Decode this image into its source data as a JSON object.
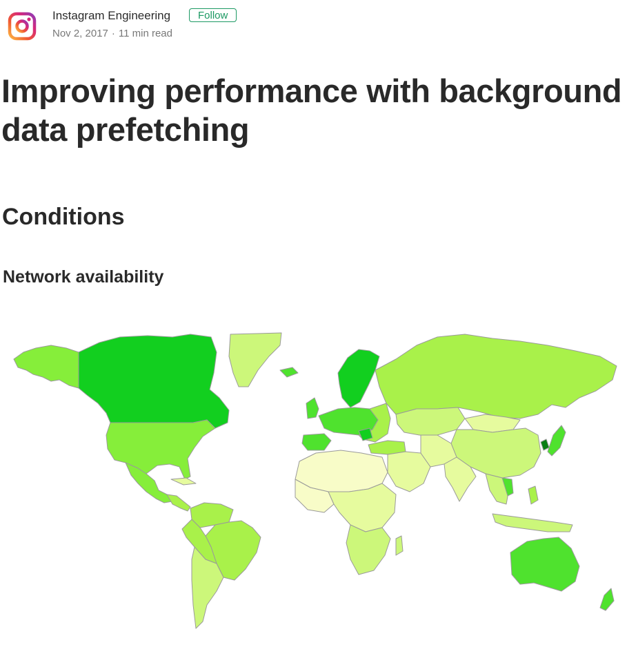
{
  "author": {
    "name": "Instagram Engineering",
    "follow_label": "Follow",
    "date": "Nov 2, 2017",
    "separator": "·",
    "read_time": "11 min read",
    "logo_icon": "instagram-logo-icon"
  },
  "article": {
    "title": "Improving performance with background data prefetching",
    "section_heading": "Conditions",
    "subsection_heading": "Network availability"
  },
  "map": {
    "palette": {
      "very_low": "#f8fcc8",
      "low": "#e6fb9e",
      "lowmid": "#ccf77a",
      "mid": "#a9f14a",
      "midhigh": "#86ee3a",
      "high": "#4fe22e",
      "very_high": "#12cf1f",
      "max": "#0a7f14",
      "border": "#9a9a9a"
    }
  }
}
